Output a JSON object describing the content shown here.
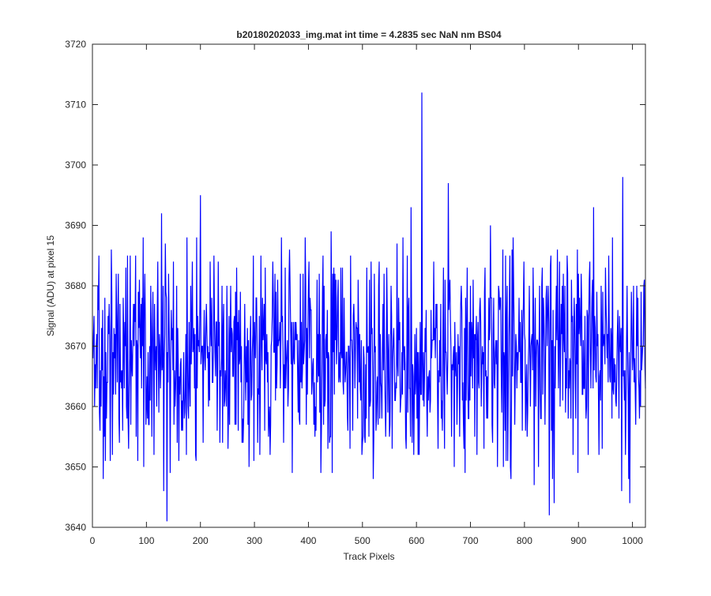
{
  "chart_data": {
    "type": "line",
    "title": "b20180202033_img.mat int time = 4.2835 sec  NaN nm BS04",
    "xlabel": "Track Pixels",
    "ylabel": "Signal (ADU) at pixel 15",
    "xlim": [
      0,
      1024
    ],
    "ylim": [
      3640,
      3720
    ],
    "xticks": [
      "0",
      "100",
      "200",
      "300",
      "400",
      "500",
      "600",
      "700",
      "800",
      "900",
      "1000"
    ],
    "yticks": [
      "3640",
      "3650",
      "3660",
      "3670",
      "3680",
      "3690",
      "3700",
      "3710",
      "3720"
    ],
    "grid": false,
    "legend": "none",
    "series": [
      {
        "color": "#0000ff",
        "x_start": 1,
        "x_step": 1,
        "count": 1024,
        "baseline": 3668,
        "anchors": [
          [
            1,
            3668
          ],
          [
            2,
            3672
          ],
          [
            10,
            3680
          ],
          [
            14,
            3656
          ],
          [
            33,
            3651
          ],
          [
            37,
            3652
          ],
          [
            44,
            3682
          ],
          [
            48,
            3682
          ],
          [
            50,
            3654
          ],
          [
            65,
            3685
          ],
          [
            70,
            3685
          ],
          [
            80,
            3685
          ],
          [
            84,
            3651
          ],
          [
            94,
            3688
          ],
          [
            95,
            3650
          ],
          [
            108,
            3680
          ],
          [
            112,
            3679
          ],
          [
            128,
            3692
          ],
          [
            132,
            3646
          ],
          [
            138,
            3641
          ],
          [
            144,
            3649
          ],
          [
            150,
            3684
          ],
          [
            156,
            3680
          ],
          [
            165,
            3656
          ],
          [
            175,
            3688
          ],
          [
            185,
            3684
          ],
          [
            200,
            3695
          ],
          [
            205,
            3654
          ],
          [
            218,
            3684
          ],
          [
            225,
            3685
          ],
          [
            231,
            3656
          ],
          [
            240,
            3680
          ],
          [
            256,
            3680
          ],
          [
            266,
            3657
          ],
          [
            290,
            3650
          ],
          [
            298,
            3685
          ],
          [
            310,
            3652
          ],
          [
            320,
            3683
          ],
          [
            335,
            3678
          ],
          [
            350,
            3688
          ],
          [
            365,
            3686
          ],
          [
            370,
            3649
          ],
          [
            385,
            3682
          ],
          [
            400,
            3680
          ],
          [
            410,
            3657
          ],
          [
            420,
            3682
          ],
          [
            436,
            3653
          ],
          [
            445,
            3682
          ],
          [
            460,
            3683
          ],
          [
            478,
            3685
          ],
          [
            500,
            3654
          ],
          [
            512,
            3655
          ],
          [
            520,
            3648
          ],
          [
            530,
            3680
          ],
          [
            545,
            3683
          ],
          [
            555,
            3653
          ],
          [
            575,
            3688
          ],
          [
            590,
            3693
          ],
          [
            595,
            3652
          ],
          [
            605,
            3652
          ],
          [
            610,
            3712
          ],
          [
            614,
            3660
          ],
          [
            620,
            3655
          ],
          [
            640,
            3653
          ],
          [
            650,
            3683
          ],
          [
            659,
            3697
          ],
          [
            665,
            3655
          ],
          [
            680,
            3655
          ],
          [
            690,
            3649
          ],
          [
            700,
            3680
          ],
          [
            712,
            3652
          ],
          [
            725,
            3653
          ],
          [
            737,
            3690
          ],
          [
            750,
            3650
          ],
          [
            760,
            3686
          ],
          [
            775,
            3648
          ],
          [
            780,
            3680
          ],
          [
            795,
            3676
          ],
          [
            805,
            3655
          ],
          [
            820,
            3678
          ],
          [
            838,
            3657
          ],
          [
            846,
            3642
          ],
          [
            855,
            3644
          ],
          [
            870,
            3680
          ],
          [
            880,
            3682
          ],
          [
            895,
            3658
          ],
          [
            905,
            3682
          ],
          [
            915,
            3660
          ],
          [
            925,
            3678
          ],
          [
            928,
            3693
          ],
          [
            935,
            3670
          ],
          [
            942,
            3680
          ],
          [
            950,
            3683
          ],
          [
            963,
            3688
          ],
          [
            970,
            3660
          ],
          [
            980,
            3646
          ],
          [
            982,
            3698
          ],
          [
            986,
            3666
          ],
          [
            990,
            3680
          ],
          [
            993,
            3648
          ],
          [
            995,
            3644
          ],
          [
            999,
            3674
          ],
          [
            1005,
            3663
          ],
          [
            1010,
            3678
          ],
          [
            1015,
            3660
          ],
          [
            1019,
            3670
          ],
          [
            1022,
            3681
          ],
          [
            1024,
            3663
          ]
        ]
      }
    ]
  }
}
